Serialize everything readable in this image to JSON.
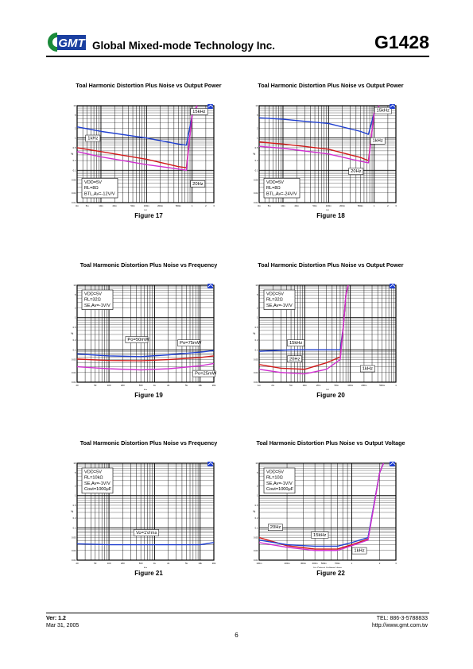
{
  "header": {
    "logo_text": "GMT",
    "company": "Global Mixed-mode Technology Inc.",
    "part_number": "G1428"
  },
  "colors": {
    "blue": "#1f3fd0",
    "red": "#d01818",
    "magenta": "#d030d0",
    "logo_green": "#1a8a3a",
    "logo_blue": "#1a3fa0"
  },
  "figures": [
    {
      "title": "Toal Harmonic Distortion Plus Noise vs Output Power",
      "figure_label": "Figure 17",
      "chart_data": {
        "type": "line",
        "xscale": "log",
        "yscale": "log",
        "xlim": [
          0.003,
          3
        ],
        "ylim": [
          0.01,
          10
        ],
        "xticks": [
          "3m",
          "5m",
          "10m",
          "20m",
          "50m",
          "100m",
          "200m",
          "500m",
          "1",
          "2",
          "3"
        ],
        "yticks": [
          "0.01",
          "0.02",
          "0.05",
          "0.1",
          "0.2",
          "0.5",
          "1",
          "2",
          "5",
          "10"
        ],
        "xlabel": "W",
        "ylabel": "%",
        "conditions": [
          "VDD=5V",
          "RL=8Ω",
          "BTL,Av=-12V/V"
        ],
        "series": [
          {
            "name": "15kHz",
            "color": "blue",
            "points": [
              [
                0.003,
                2.2
              ],
              [
                0.01,
                1.6
              ],
              [
                0.1,
                1.0
              ],
              [
                0.5,
                0.65
              ],
              [
                0.75,
                0.6
              ],
              [
                1.0,
                5
              ],
              [
                1.3,
                10
              ]
            ]
          },
          {
            "name": "1kHz",
            "color": "red",
            "points": [
              [
                0.003,
                0.5
              ],
              [
                0.01,
                0.38
              ],
              [
                0.1,
                0.22
              ],
              [
                0.5,
                0.13
              ],
              [
                0.75,
                0.12
              ],
              [
                1.0,
                5
              ],
              [
                1.3,
                10
              ]
            ]
          },
          {
            "name": "20Hz",
            "color": "magenta",
            "points": [
              [
                0.003,
                0.38
              ],
              [
                0.01,
                0.26
              ],
              [
                0.1,
                0.15
              ],
              [
                0.5,
                0.11
              ],
              [
                0.75,
                0.1
              ],
              [
                1.0,
                5
              ],
              [
                1.3,
                10
              ]
            ]
          }
        ],
        "labels": [
          {
            "text": "15kHz",
            "x": 1.0,
            "y": 6.0
          },
          {
            "text": "1kHz",
            "x": 0.005,
            "y": 0.9
          },
          {
            "text": "20Hz",
            "x": 1.0,
            "y": 0.035
          }
        ]
      }
    },
    {
      "title": "Toal Harmonic Distortion Plus Noise vs Output Power",
      "figure_label": "Figure 18",
      "chart_data": {
        "type": "line",
        "xscale": "log",
        "yscale": "log",
        "xlim": [
          0.003,
          3
        ],
        "ylim": [
          0.01,
          10
        ],
        "xticks": [
          "3m",
          "5m",
          "10m",
          "20m",
          "50m",
          "100m",
          "200m",
          "500m",
          "1",
          "2",
          "3"
        ],
        "yticks": [
          "0.01",
          "0.02",
          "0.05",
          "0.1",
          "0.2",
          "0.5",
          "1",
          "2",
          "5",
          "10"
        ],
        "xlabel": "W",
        "ylabel": "%",
        "conditions": [
          "VDD=5V",
          "RL=8Ω",
          "BTL,Av=-24V/V"
        ],
        "series": [
          {
            "name": "15kHz",
            "color": "blue",
            "points": [
              [
                0.003,
                4.2
              ],
              [
                0.01,
                3.8
              ],
              [
                0.1,
                2.8
              ],
              [
                0.5,
                1.6
              ],
              [
                0.75,
                1.3
              ],
              [
                1.0,
                6
              ],
              [
                1.3,
                10
              ]
            ]
          },
          {
            "name": "1kHz",
            "color": "red",
            "points": [
              [
                0.003,
                0.75
              ],
              [
                0.01,
                0.65
              ],
              [
                0.1,
                0.45
              ],
              [
                0.5,
                0.25
              ],
              [
                0.75,
                0.2
              ],
              [
                1.0,
                6
              ],
              [
                1.3,
                10
              ]
            ]
          },
          {
            "name": "20Hz",
            "color": "magenta",
            "points": [
              [
                0.003,
                0.55
              ],
              [
                0.01,
                0.48
              ],
              [
                0.1,
                0.32
              ],
              [
                0.5,
                0.19
              ],
              [
                0.75,
                0.17
              ],
              [
                1.0,
                6
              ],
              [
                1.3,
                10
              ]
            ]
          }
        ],
        "labels": [
          {
            "text": "15kHz",
            "x": 1.1,
            "y": 6.5
          },
          {
            "text": "1kHz",
            "x": 0.9,
            "y": 0.75
          },
          {
            "text": "20Hz",
            "x": 0.3,
            "y": 0.085
          }
        ]
      }
    },
    {
      "title": "Toal Harmonic Distortion Plus Noise vs Frequency",
      "figure_label": "Figure 19",
      "chart_data": {
        "type": "line",
        "xscale": "log",
        "yscale": "log",
        "xlim": [
          20,
          20000
        ],
        "ylim": [
          0.01,
          10
        ],
        "xticks": [
          "20",
          "50",
          "100",
          "200",
          "500",
          "1k",
          "2k",
          "5k",
          "10k",
          "20k"
        ],
        "yticks": [
          "0.01",
          "0.02",
          "0.05",
          "0.1",
          "0.2",
          "0.5",
          "1",
          "2",
          "5",
          "10"
        ],
        "xlabel": "Hz",
        "ylabel": "%",
        "conditions": [
          "VDD=5V",
          "RL=32Ω",
          "SE,Av=-1V/V"
        ],
        "series": [
          {
            "name": "Po=50mW",
            "color": "blue",
            "points": [
              [
                20,
                0.075
              ],
              [
                100,
                0.065
              ],
              [
                500,
                0.062
              ],
              [
                2000,
                0.07
              ],
              [
                10000,
                0.085
              ],
              [
                20000,
                0.095
              ]
            ]
          },
          {
            "name": "Po=75mW",
            "color": "red",
            "points": [
              [
                20,
                0.052
              ],
              [
                100,
                0.047
              ],
              [
                500,
                0.046
              ],
              [
                2000,
                0.05
              ],
              [
                10000,
                0.058
              ],
              [
                20000,
                0.065
              ]
            ]
          },
          {
            "name": "Po=25mW",
            "color": "magenta",
            "points": [
              [
                20,
                0.03
              ],
              [
                100,
                0.026
              ],
              [
                500,
                0.024
              ],
              [
                2000,
                0.026
              ],
              [
                10000,
                0.032
              ],
              [
                20000,
                0.038
              ]
            ]
          }
        ],
        "labels": [
          {
            "text": "Po=50mW",
            "x": 250,
            "y": 0.19
          },
          {
            "text": "Po=75mW",
            "x": 3500,
            "y": 0.15
          },
          {
            "text": "Po=25mW",
            "x": 7500,
            "y": 0.017
          }
        ]
      }
    },
    {
      "title": "Toal Harmonic Distortion Plus Noise vs Output Power",
      "figure_label": "Figure 20",
      "chart_data": {
        "type": "line",
        "xscale": "log",
        "yscale": "log",
        "xlim": [
          0.001,
          1
        ],
        "ylim": [
          0.01,
          10
        ],
        "xticks": [
          "1m",
          "2m",
          "5m",
          "10m",
          "20m",
          "50m",
          "100m",
          "200m",
          "500m",
          "1"
        ],
        "yticks": [
          "0.01",
          "0.02",
          "0.05",
          "0.1",
          "0.2",
          "0.5",
          "1",
          "2",
          "5",
          "10"
        ],
        "xlabel": "W",
        "ylabel": "%",
        "conditions": [
          "VDD=5V",
          "RL=32Ω",
          "SE,Av=-1V/V"
        ],
        "series": [
          {
            "name": "15kHz",
            "color": "blue",
            "points": [
              [
                0.001,
                0.09
              ],
              [
                0.005,
                0.1
              ],
              [
                0.02,
                0.1
              ],
              [
                0.06,
                0.1
              ],
              [
                0.07,
                0.5
              ],
              [
                0.08,
                5
              ],
              [
                0.09,
                10
              ]
            ]
          },
          {
            "name": "20Hz",
            "color": "red",
            "points": [
              [
                0.001,
                0.035
              ],
              [
                0.003,
                0.027
              ],
              [
                0.01,
                0.025
              ],
              [
                0.03,
                0.04
              ],
              [
                0.06,
                0.06
              ],
              [
                0.07,
                0.5
              ],
              [
                0.08,
                5
              ],
              [
                0.09,
                10
              ]
            ]
          },
          {
            "name": "1kHz",
            "color": "magenta",
            "points": [
              [
                0.001,
                0.025
              ],
              [
                0.003,
                0.02
              ],
              [
                0.01,
                0.018
              ],
              [
                0.03,
                0.025
              ],
              [
                0.06,
                0.05
              ],
              [
                0.07,
                0.5
              ],
              [
                0.08,
                5
              ],
              [
                0.09,
                10
              ]
            ]
          }
        ],
        "labels": [
          {
            "text": "15kHz",
            "x": 0.0045,
            "y": 0.15
          },
          {
            "text": "20Hz",
            "x": 0.0045,
            "y": 0.048
          },
          {
            "text": "1kHz",
            "x": 0.18,
            "y": 0.024
          }
        ]
      }
    },
    {
      "title": "Toal Harmonic Distortion Plus Noise vs Frequency",
      "figure_label": "Figure 21",
      "chart_data": {
        "type": "line",
        "xscale": "log",
        "yscale": "log",
        "xlim": [
          20,
          20000
        ],
        "ylim": [
          0.01,
          10
        ],
        "xticks": [
          "20",
          "50",
          "100",
          "200",
          "500",
          "1k",
          "2k",
          "5k",
          "10k",
          "20k"
        ],
        "yticks": [
          "0.01",
          "0.02",
          "0.05",
          "0.1",
          "0.2",
          "0.5",
          "1",
          "2",
          "5",
          "10"
        ],
        "xlabel": "Hz",
        "ylabel": "%",
        "conditions": [
          "VDD=5V",
          "RL=10kΩ",
          "SE,Av=-1V/V",
          "Cout=1000μF"
        ],
        "series": [
          {
            "name": "Vo=1Vrms",
            "color": "blue",
            "points": [
              [
                20,
                0.032
              ],
              [
                100,
                0.03
              ],
              [
                1000,
                0.03
              ],
              [
                10000,
                0.03
              ],
              [
                20000,
                0.035
              ]
            ]
          }
        ],
        "labels": [
          {
            "text": "Vo=1Vrms",
            "x": 380,
            "y": 0.065
          }
        ]
      }
    },
    {
      "title": "Toal Harmonic Distortion Plus Noise vs Output Voltage",
      "figure_label": "Figure 22",
      "chart_data": {
        "type": "line",
        "xscale": "log",
        "yscale": "log",
        "xlim": [
          0.1,
          3
        ],
        "ylim": [
          0.01,
          10
        ],
        "xticks": [
          "100m",
          "200m",
          "300m",
          "400m",
          "500m",
          "700m",
          "1",
          "2",
          "3"
        ],
        "yticks": [
          "0.01",
          "0.02",
          "0.05",
          "0.1",
          "0.2",
          "0.5",
          "1",
          "2",
          "5",
          "10"
        ],
        "xlabel": "Vo:Output Voltage Vrms",
        "ylabel": "%",
        "conditions": [
          "VDD=5V",
          "RL=10Ω",
          "SE,Av=-1V/V",
          "Cout=1000μF"
        ],
        "series": [
          {
            "name": "20Hz",
            "color": "red",
            "points": [
              [
                0.1,
                0.05
              ],
              [
                0.2,
                0.028
              ],
              [
                0.4,
                0.022
              ],
              [
                0.7,
                0.022
              ],
              [
                1.0,
                0.03
              ],
              [
                1.5,
                0.045
              ],
              [
                2.0,
                5
              ],
              [
                2.2,
                10
              ]
            ]
          },
          {
            "name": "15kHz",
            "color": "blue",
            "points": [
              [
                0.1,
                0.042
              ],
              [
                0.2,
                0.03
              ],
              [
                0.4,
                0.027
              ],
              [
                0.7,
                0.027
              ],
              [
                1.0,
                0.035
              ],
              [
                1.5,
                0.05
              ],
              [
                2.0,
                5
              ],
              [
                2.2,
                10
              ]
            ]
          },
          {
            "name": "1kHz",
            "color": "magenta",
            "points": [
              [
                0.1,
                0.035
              ],
              [
                0.2,
                0.025
              ],
              [
                0.4,
                0.02
              ],
              [
                0.7,
                0.02
              ],
              [
                1.0,
                0.028
              ],
              [
                1.5,
                0.042
              ],
              [
                2.0,
                5
              ],
              [
                2.2,
                10
              ]
            ]
          }
        ],
        "labels": [
          {
            "text": "20Hz",
            "x": 0.13,
            "y": 0.095
          },
          {
            "text": "15kHz",
            "x": 0.38,
            "y": 0.055
          },
          {
            "text": "1kHz",
            "x": 1.05,
            "y": 0.018
          }
        ]
      }
    }
  ],
  "footer": {
    "version": "Ver: 1.2",
    "date": "Mar 31, 2005",
    "tel": "TEL: 886-3-5788833",
    "url": "http://www.gmt.com.tw",
    "page": "6"
  }
}
